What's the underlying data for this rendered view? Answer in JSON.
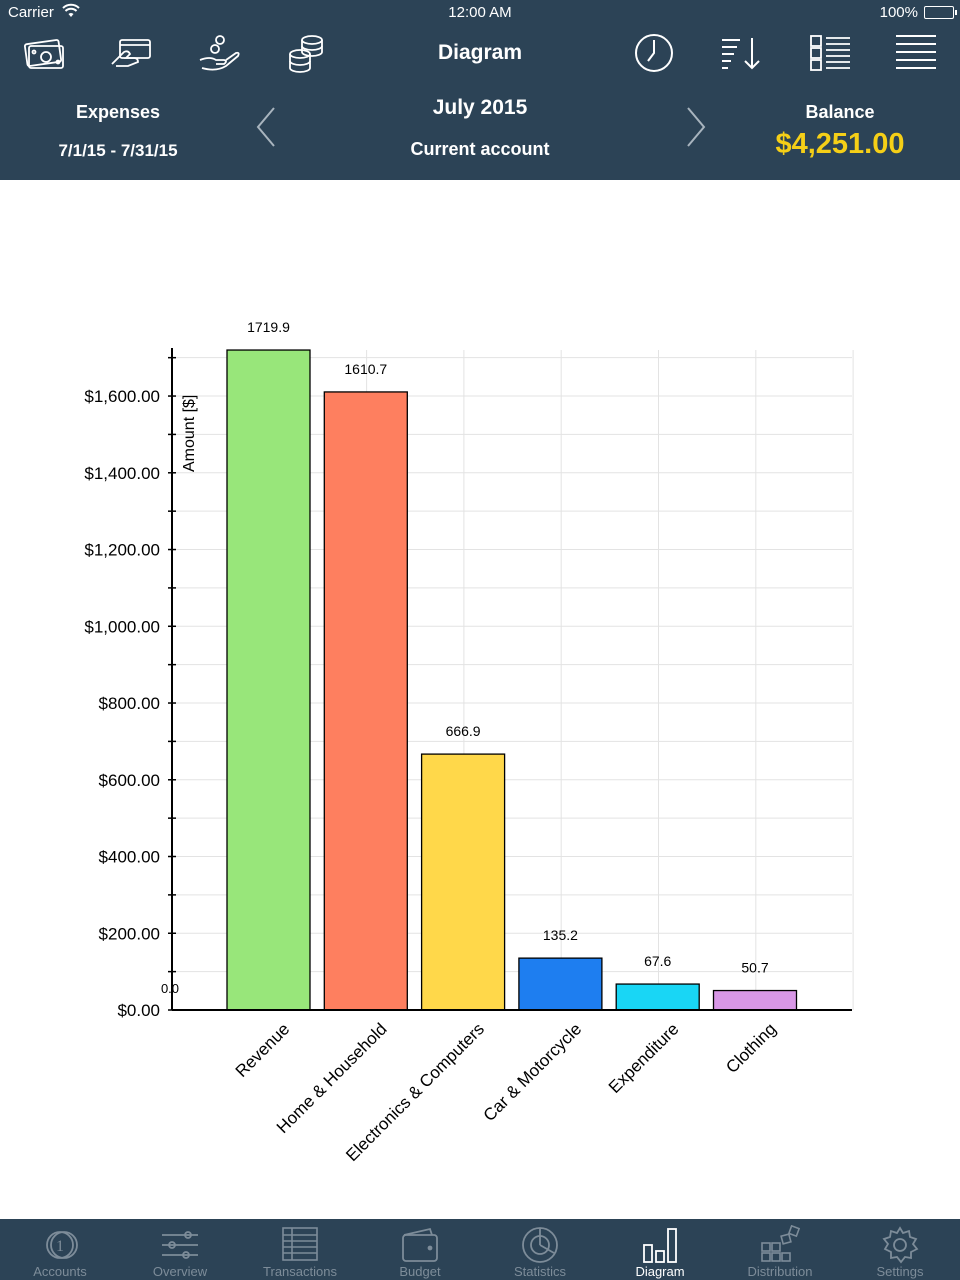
{
  "status_bar": {
    "carrier": "Carrier",
    "time": "12:00 AM",
    "battery": "100%"
  },
  "nav": {
    "title": "Diagram",
    "left_icons": [
      "cash-icon",
      "card-payment-icon",
      "income-hand-icon",
      "coins-stack-icon"
    ],
    "right_icons": [
      "clock-icon",
      "sort-icon",
      "report-list-icon",
      "menu-icon"
    ]
  },
  "summary": {
    "left_title": "Expenses",
    "date_range": "7/1/15 - 7/31/15",
    "period": "July 2015",
    "account": "Current account",
    "balance_title": "Balance",
    "balance_value": "$4,251.00",
    "balance_color": "#f5cf17"
  },
  "chart_data": {
    "type": "bar",
    "categories": [
      "Revenue",
      "Home & Household",
      "Electronics & Computers",
      "Car & Motorcycle",
      "Expenditure",
      "Clothing"
    ],
    "values": [
      1719.9,
      1610.7,
      666.9,
      135.2,
      67.6,
      50.7
    ],
    "value_labels": [
      "1719.9",
      "1610.7",
      "666.9",
      "135.2",
      "67.6",
      "50.7"
    ],
    "colors": [
      "#98e67a",
      "#fe7f5f",
      "#ffd84a",
      "#1e7ef0",
      "#19d6f5",
      "#d897e6"
    ],
    "ylabel": "Amount [$]",
    "ylim": [
      0,
      1720
    ],
    "yticks": [
      0,
      200,
      400,
      600,
      800,
      1000,
      1200,
      1400,
      1600
    ],
    "ytick_labels": [
      "$0.00",
      "$200.00",
      "$400.00",
      "$600.00",
      "$800.00",
      "$1,000.00",
      "$1,200.00",
      "$1,400.00",
      "$1,600.00"
    ],
    "origin_label": "0.0",
    "grid": true
  },
  "tabs": [
    {
      "label": "Accounts",
      "icon": "coin-icon",
      "active": false
    },
    {
      "label": "Overview",
      "icon": "sliders-icon",
      "active": false
    },
    {
      "label": "Transactions",
      "icon": "ledger-icon",
      "active": false
    },
    {
      "label": "Budget",
      "icon": "wallet-icon",
      "active": false
    },
    {
      "label": "Statistics",
      "icon": "pie-chart-icon",
      "active": false
    },
    {
      "label": "Diagram",
      "icon": "bar-chart-icon",
      "active": true
    },
    {
      "label": "Distribution",
      "icon": "distribution-grid-icon",
      "active": false
    },
    {
      "label": "Settings",
      "icon": "gear-icon",
      "active": false
    }
  ]
}
